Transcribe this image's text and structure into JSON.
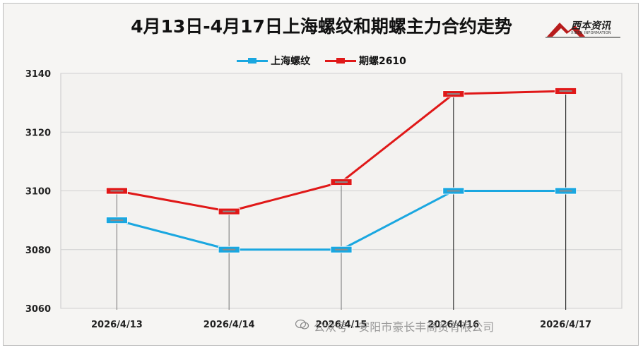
{
  "chart_data": {
    "type": "line",
    "title": "4月13日-4月17日上海螺纹和期螺主力合约走势",
    "categories": [
      "2026/4/13",
      "2026/4/14",
      "2026/4/15",
      "2026/4/16",
      "2026/4/17"
    ],
    "series": [
      {
        "name": "上海螺纹",
        "color": "#1aa7e0",
        "values": [
          3090,
          3080,
          3080,
          3100,
          3100
        ]
      },
      {
        "name": "期螺2610",
        "color": "#e01818",
        "values": [
          3100,
          3093,
          3103,
          3133,
          3134
        ]
      }
    ],
    "yticks": [
      3060,
      3080,
      3100,
      3120,
      3140
    ],
    "ylim": [
      3060,
      3140
    ],
    "grid": true,
    "legend_position": "top"
  },
  "logo": {
    "name": "西本资讯",
    "subtitle": "XIBEN INFORMATION"
  },
  "watermark": "公众号 · 安阳市豪长丰商贸有限公司"
}
